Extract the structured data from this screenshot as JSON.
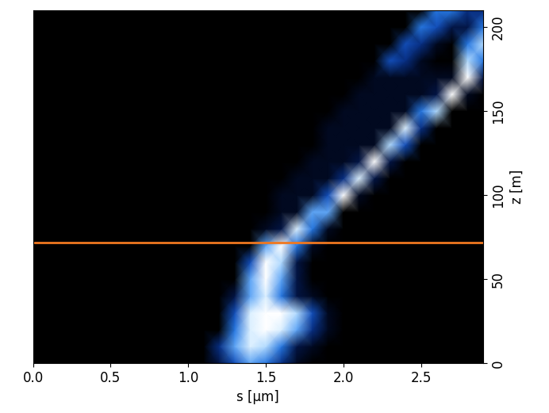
{
  "chart_data": {
    "type": "heatmap",
    "x_label": "s [µm]",
    "y_label": "z [m]",
    "x": [
      0.0,
      0.1,
      0.2,
      0.3,
      0.4,
      0.5,
      0.6,
      0.7,
      0.8,
      0.9,
      1.0,
      1.1,
      1.2,
      1.3,
      1.4,
      1.5,
      1.6,
      1.7,
      1.8,
      1.9,
      2.0,
      2.1,
      2.2,
      2.3,
      2.4,
      2.5,
      2.6,
      2.7,
      2.8,
      2.9
    ],
    "y": [
      0,
      10,
      20,
      30,
      40,
      50,
      60,
      70,
      80,
      90,
      100,
      110,
      120,
      130,
      140,
      150,
      160,
      170,
      180,
      190,
      200,
      210
    ],
    "cells": [
      [
        0,
        0,
        0,
        0,
        0,
        0,
        0,
        0,
        0,
        0,
        0,
        0,
        2,
        4,
        6,
        5,
        3,
        1,
        0,
        0,
        0,
        0,
        0,
        0,
        0,
        0,
        0,
        0,
        0,
        0
      ],
      [
        0,
        0,
        0,
        0,
        0,
        0,
        0,
        0,
        0,
        0,
        0,
        0,
        3,
        6,
        8,
        7,
        5,
        2,
        1,
        0,
        0,
        0,
        0,
        0,
        0,
        0,
        0,
        0,
        0,
        0
      ],
      [
        0,
        0,
        0,
        0,
        0,
        0,
        0,
        0,
        0,
        0,
        0,
        0,
        0,
        5,
        8,
        9,
        8,
        6,
        3,
        1,
        0,
        0,
        0,
        0,
        0,
        0,
        0,
        0,
        0,
        0
      ],
      [
        0,
        0,
        0,
        0,
        0,
        0,
        0,
        0,
        0,
        0,
        0,
        0,
        0,
        4,
        8,
        9,
        9,
        7,
        4,
        1,
        0,
        0,
        0,
        0,
        0,
        0,
        0,
        0,
        0,
        0
      ],
      [
        0,
        0,
        0,
        0,
        0,
        0,
        0,
        0,
        0,
        0,
        0,
        0,
        0,
        2,
        6,
        8,
        5,
        2,
        1,
        0,
        0,
        0,
        0,
        0,
        0,
        0,
        0,
        0,
        0,
        0
      ],
      [
        0,
        0,
        0,
        0,
        0,
        0,
        0,
        0,
        0,
        0,
        0,
        0,
        0,
        0,
        6,
        9,
        6,
        2,
        0,
        0,
        0,
        0,
        0,
        0,
        0,
        0,
        0,
        0,
        0,
        0
      ],
      [
        0,
        0,
        0,
        0,
        0,
        0,
        0,
        0,
        0,
        0,
        0,
        0,
        0,
        0,
        4,
        9,
        7,
        2,
        0,
        0,
        0,
        0,
        0,
        0,
        0,
        0,
        0,
        0,
        0,
        0
      ],
      [
        0,
        0,
        0,
        0,
        0,
        0,
        0,
        0,
        0,
        0,
        0,
        0,
        0,
        0,
        0,
        6,
        9,
        5,
        1,
        0,
        0,
        0,
        0,
        0,
        0,
        0,
        0,
        0,
        0,
        0
      ],
      [
        0,
        0,
        0,
        0,
        0,
        0,
        0,
        0,
        0,
        0,
        0,
        0,
        0,
        0,
        0,
        1,
        2,
        8,
        5,
        1,
        0,
        0,
        0,
        0,
        0,
        0,
        0,
        0,
        0,
        0
      ],
      [
        0,
        0,
        0,
        0,
        0,
        0,
        0,
        0,
        0,
        0,
        0,
        0,
        0,
        0,
        0,
        0,
        1,
        1,
        6,
        6,
        0,
        0,
        0,
        0,
        0,
        0,
        0,
        0,
        0,
        0
      ],
      [
        0,
        0,
        0,
        0,
        0,
        0,
        0,
        0,
        0,
        0,
        0,
        0,
        0,
        0,
        0,
        0,
        1,
        1,
        1,
        4,
        9,
        1,
        0,
        0,
        0,
        0,
        0,
        0,
        0,
        0
      ],
      [
        0,
        0,
        0,
        0,
        0,
        0,
        0,
        0,
        0,
        0,
        0,
        0,
        0,
        0,
        0,
        0,
        0,
        1,
        1,
        1,
        3,
        8,
        2,
        0,
        0,
        0,
        0,
        0,
        0,
        0
      ],
      [
        0,
        0,
        0,
        0,
        0,
        0,
        0,
        0,
        0,
        0,
        0,
        0,
        0,
        0,
        0,
        0,
        0,
        0,
        1,
        1,
        1,
        2,
        9,
        2,
        0,
        0,
        0,
        0,
        0,
        0
      ],
      [
        0,
        0,
        0,
        0,
        0,
        0,
        0,
        0,
        0,
        0,
        0,
        0,
        0,
        0,
        0,
        0,
        0,
        0,
        0,
        1,
        1,
        1,
        1,
        7,
        4,
        0,
        0,
        0,
        0,
        0
      ],
      [
        0,
        0,
        0,
        0,
        0,
        0,
        0,
        0,
        0,
        0,
        0,
        0,
        0,
        0,
        0,
        0,
        0,
        0,
        0,
        1,
        1,
        1,
        1,
        1,
        8,
        3,
        0,
        0,
        0,
        0
      ],
      [
        0,
        0,
        0,
        0,
        0,
        0,
        0,
        0,
        0,
        0,
        0,
        0,
        0,
        0,
        0,
        0,
        0,
        0,
        0,
        0,
        1,
        1,
        1,
        1,
        1,
        5,
        7,
        0,
        0,
        0
      ],
      [
        0,
        0,
        0,
        0,
        0,
        0,
        0,
        0,
        0,
        0,
        0,
        0,
        0,
        0,
        0,
        0,
        0,
        0,
        0,
        0,
        0,
        1,
        1,
        1,
        1,
        1,
        2,
        9,
        1,
        0
      ],
      [
        0,
        0,
        0,
        0,
        0,
        0,
        0,
        0,
        0,
        0,
        0,
        0,
        0,
        0,
        0,
        0,
        0,
        0,
        0,
        0,
        0,
        0,
        1,
        1,
        1,
        1,
        1,
        1,
        9,
        2
      ],
      [
        0,
        0,
        0,
        0,
        0,
        0,
        0,
        0,
        0,
        0,
        0,
        0,
        0,
        0,
        0,
        0,
        0,
        0,
        0,
        0,
        0,
        0,
        0,
        4,
        3,
        1,
        0,
        0,
        7,
        5
      ],
      [
        0,
        0,
        0,
        0,
        0,
        0,
        0,
        0,
        0,
        0,
        0,
        0,
        0,
        0,
        0,
        0,
        0,
        0,
        0,
        0,
        0,
        0,
        0,
        0,
        4,
        3,
        1,
        0,
        5,
        7
      ],
      [
        0,
        0,
        0,
        0,
        0,
        0,
        0,
        0,
        0,
        0,
        0,
        0,
        0,
        0,
        0,
        0,
        0,
        0,
        0,
        0,
        0,
        0,
        0,
        0,
        0,
        5,
        4,
        2,
        2,
        5
      ],
      [
        0,
        0,
        0,
        0,
        0,
        0,
        0,
        0,
        0,
        0,
        0,
        0,
        0,
        0,
        0,
        0,
        0,
        0,
        0,
        0,
        0,
        0,
        0,
        0,
        0,
        0,
        5,
        5,
        3,
        3
      ]
    ],
    "xlim": [
      0,
      2.9
    ],
    "ylim": [
      0,
      210
    ],
    "xticks": [
      {
        "value": 0,
        "label": "0.0"
      },
      {
        "value": 0.5,
        "label": "0.5"
      },
      {
        "value": 1.0,
        "label": "1.0"
      },
      {
        "value": 1.5,
        "label": "1.5"
      },
      {
        "value": 2.0,
        "label": "2.0"
      },
      {
        "value": 2.5,
        "label": "2.5"
      }
    ],
    "yticks": [
      0,
      50,
      100,
      150,
      200
    ],
    "hline": {
      "y": 72,
      "color": "#f07820"
    }
  }
}
